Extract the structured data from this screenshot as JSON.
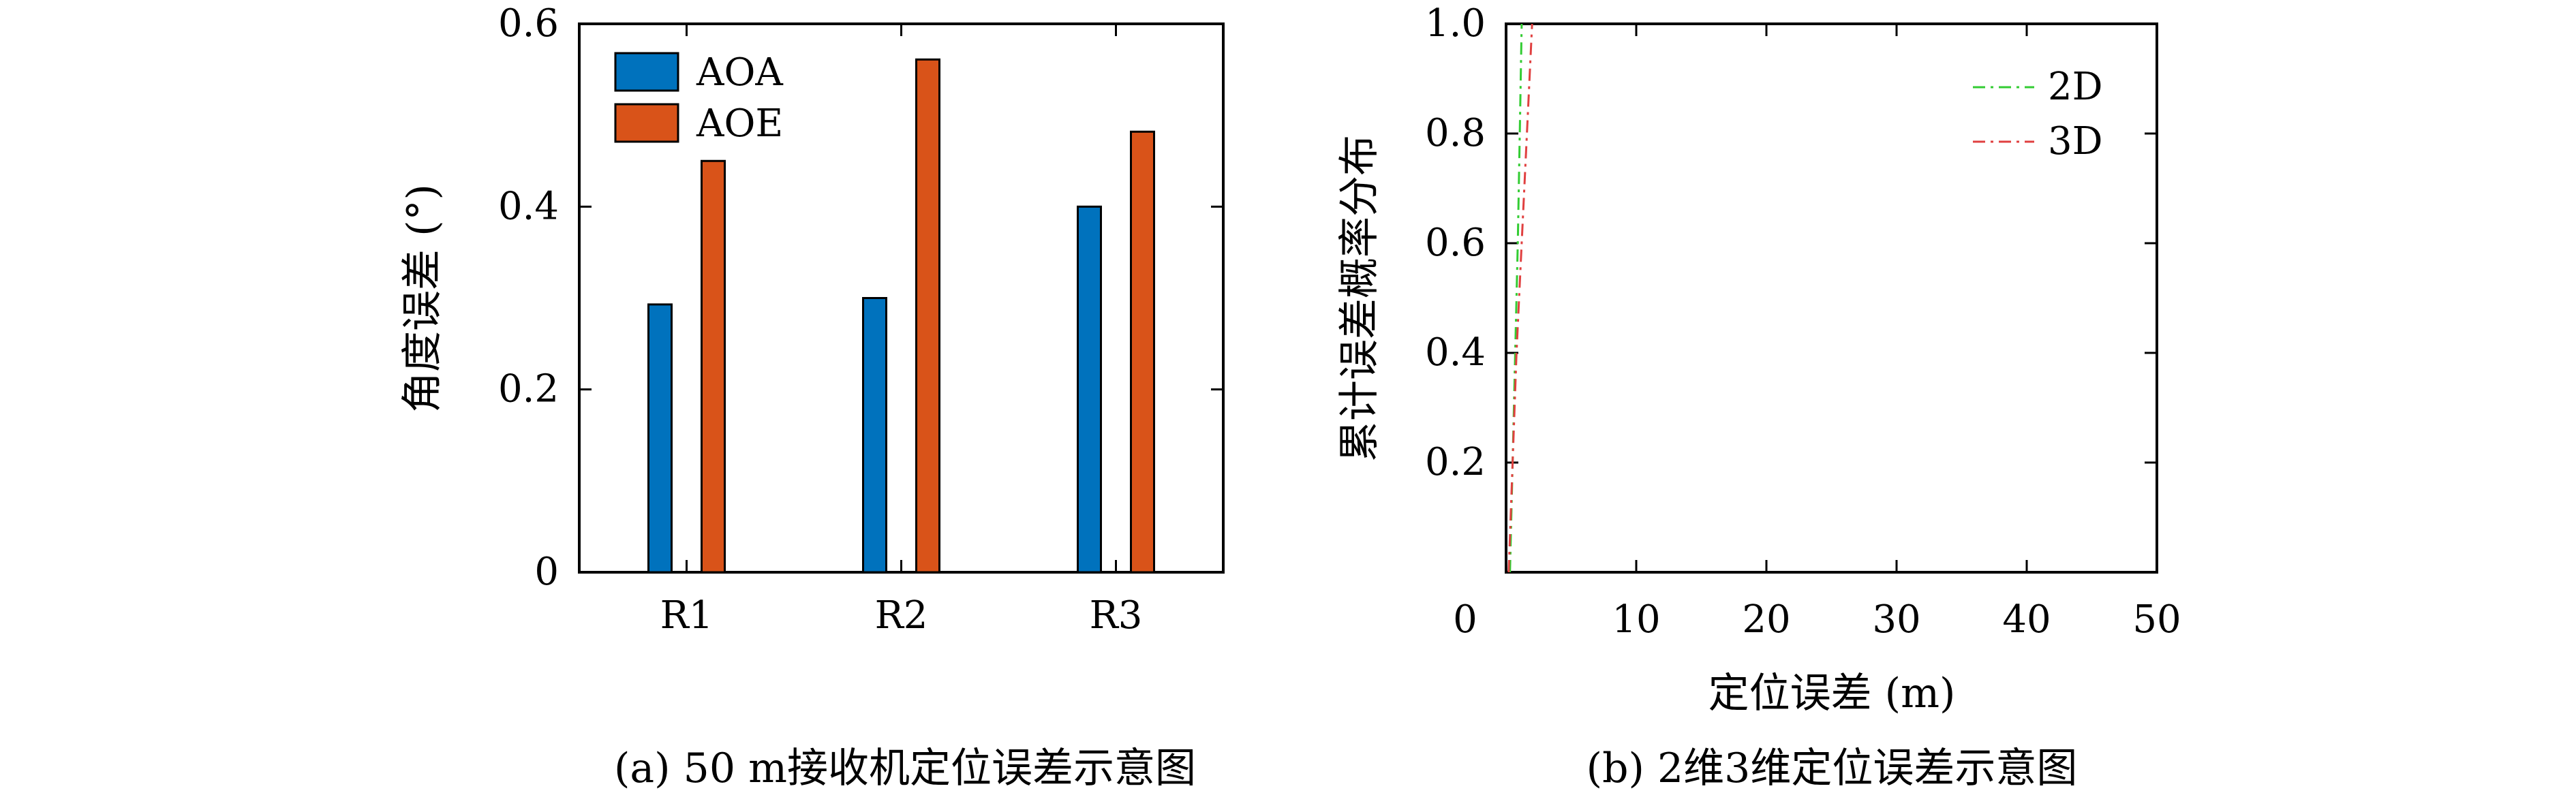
{
  "chart_data": [
    {
      "type": "bar",
      "categories": [
        "R1",
        "R2",
        "R3"
      ],
      "series": [
        {
          "name": "AOA",
          "color": "#0072BD",
          "values": [
            0.293,
            0.3,
            0.4
          ]
        },
        {
          "name": "AOE",
          "color": "#D95319",
          "values": [
            0.45,
            0.561,
            0.482
          ]
        }
      ],
      "xlabel": "",
      "ylabel": "角度误差 (°)",
      "ylim": [
        0,
        0.6
      ],
      "yticks": [
        0,
        0.2,
        0.4,
        0.6
      ],
      "ytick_labels": [
        "0",
        "0.2",
        "0.4",
        "0.6"
      ],
      "legend_position": "top-left",
      "grid": false,
      "caption": "(a) 50 m接收机定位误差示意图"
    },
    {
      "type": "line",
      "series": [
        {
          "name": "2D",
          "color": "#33CC33",
          "style": "dash-dot",
          "x": [
            0.3,
            0.5,
            0.7,
            0.9,
            1.05,
            1.2
          ],
          "y": [
            0.0,
            0.2,
            0.4,
            0.6,
            0.8,
            1.0
          ]
        },
        {
          "name": "3D",
          "color": "#E04040",
          "style": "dash-dot",
          "x": [
            0.2,
            0.5,
            0.8,
            1.2,
            1.6,
            1.9,
            2.0
          ],
          "y": [
            0.0,
            0.2,
            0.4,
            0.6,
            0.8,
            0.95,
            1.0
          ]
        }
      ],
      "xlabel": "定位误差 (m)",
      "ylabel": "累计误差概率分布",
      "xlim": [
        0,
        50
      ],
      "ylim": [
        0,
        1.0
      ],
      "xticks": [
        0,
        10,
        20,
        30,
        40,
        50
      ],
      "xtick_labels": [
        "0",
        "10",
        "20",
        "30",
        "40",
        "50"
      ],
      "yticks": [
        0.2,
        0.4,
        0.6,
        0.8,
        1.0
      ],
      "ytick_labels": [
        "0.2",
        "0.4",
        "0.6",
        "0.8",
        "1.0"
      ],
      "legend_position": "top-right",
      "grid": false,
      "caption": "(b) 2维3维定位误差示意图"
    }
  ]
}
